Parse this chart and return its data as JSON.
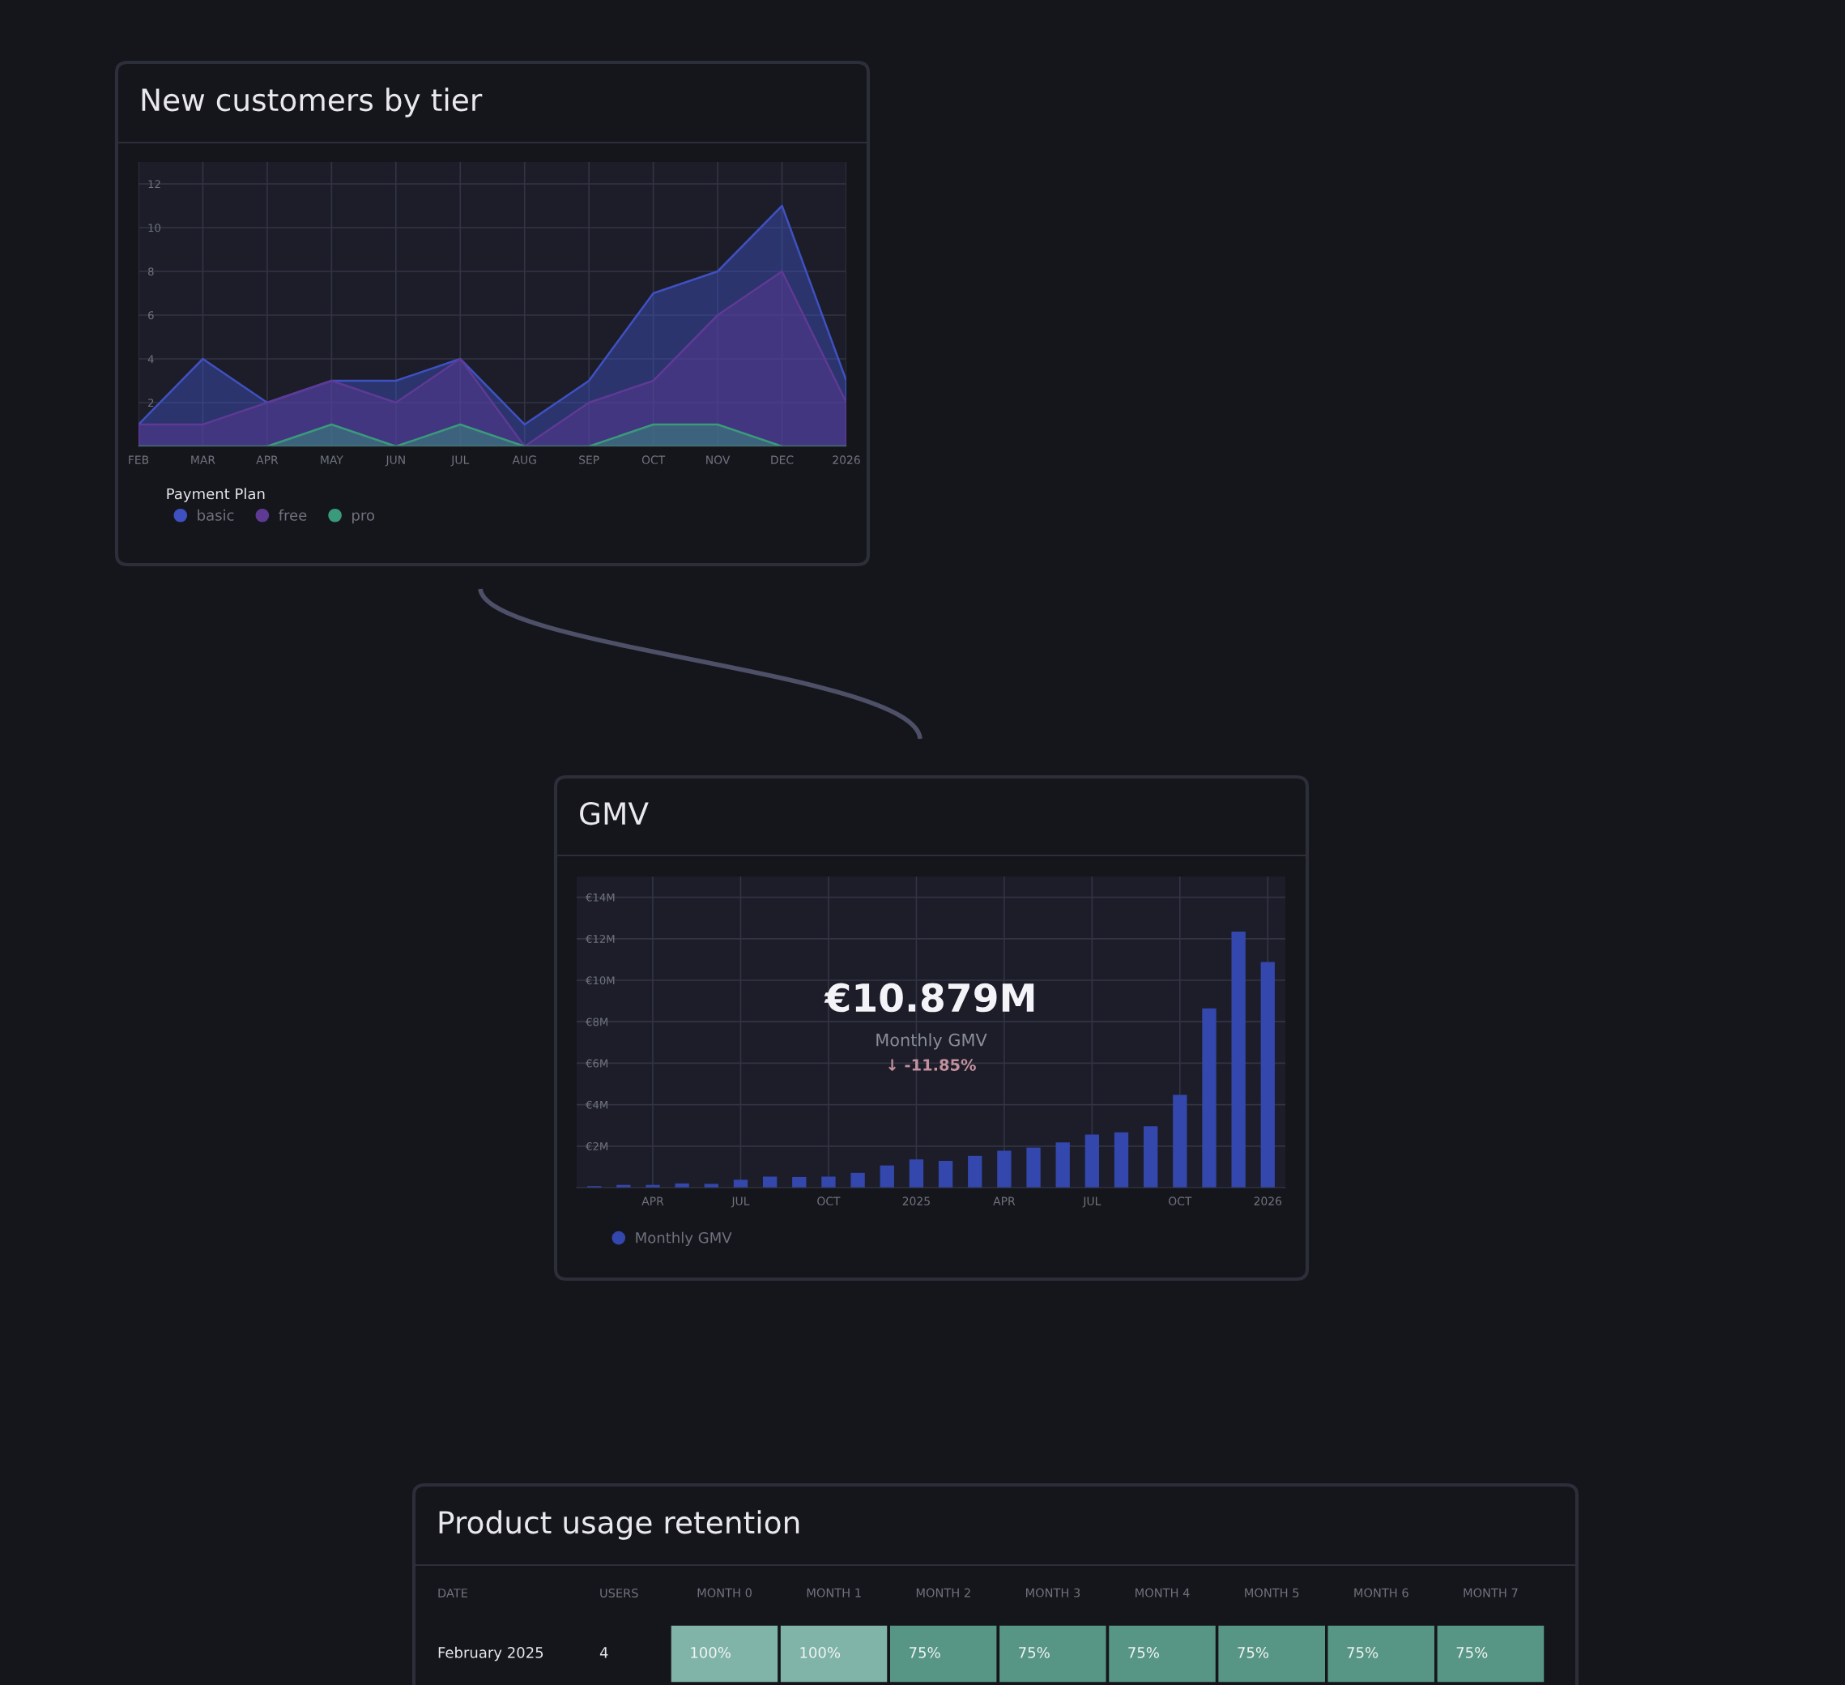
{
  "chart_data": [
    {
      "type": "area",
      "title": "New customers by tier",
      "legend_title": "Payment Plan",
      "legend": "bottom left",
      "grid": true,
      "categories": [
        "FEB",
        "MAR",
        "APR",
        "MAY",
        "JUN",
        "JUL",
        "AUG",
        "SEP",
        "OCT",
        "NOV",
        "DEC",
        "2026"
      ],
      "ylim": [
        0,
        13
      ],
      "yticks": [
        2,
        4,
        6,
        8,
        10,
        12
      ],
      "series": [
        {
          "name": "basic",
          "color": "#3f51c0",
          "values": [
            1,
            4,
            2,
            3,
            3,
            4,
            1,
            3,
            7,
            8,
            11,
            3
          ]
        },
        {
          "name": "free",
          "color": "#5e3a94",
          "values": [
            1,
            1,
            2,
            3,
            2,
            4,
            0,
            2,
            3,
            6,
            8,
            2
          ]
        },
        {
          "name": "pro",
          "color": "#3a9a7c",
          "values": [
            0,
            0,
            0,
            1,
            0,
            1,
            0,
            0,
            1,
            1,
            0,
            0
          ]
        }
      ]
    },
    {
      "type": "bar",
      "title": "GMV",
      "legend": "bottom left",
      "grid": true,
      "categories": [
        null,
        null,
        "APR",
        null,
        null,
        "JUL",
        null,
        null,
        "OCT",
        null,
        null,
        "2025",
        null,
        null,
        "APR",
        null,
        null,
        "JUL",
        null,
        null,
        "OCT",
        null,
        null,
        "2026"
      ],
      "ylim": [
        0,
        15
      ],
      "yticks": [
        {
          "value": 2,
          "label": "€2M"
        },
        {
          "value": 4,
          "label": "€4M"
        },
        {
          "value": 6,
          "label": "€6M"
        },
        {
          "value": 8,
          "label": "€8M"
        },
        {
          "value": 10,
          "label": "€10M"
        },
        {
          "value": 12,
          "label": "€12M"
        },
        {
          "value": 14,
          "label": "€14M"
        }
      ],
      "series": [
        {
          "name": "Monthly GMV",
          "color": "#3347ad",
          "values": [
            0.07,
            0.13,
            0.13,
            0.2,
            0.18,
            0.38,
            0.53,
            0.51,
            0.53,
            0.71,
            1.07,
            1.36,
            1.29,
            1.53,
            1.78,
            1.93,
            2.18,
            2.56,
            2.67,
            2.96,
            4.47,
            8.64,
            12.34,
            10.879
          ]
        }
      ],
      "annotations": [
        "€10.879M",
        "Monthly GMV",
        "↓ -11.85%"
      ]
    },
    {
      "type": "heatmap",
      "title": "Product usage retention",
      "ylabel": "DATE",
      "y2label": "USERS",
      "categories": [
        "MONTH 0",
        "MONTH 1",
        "MONTH 2",
        "MONTH 3",
        "MONTH 4",
        "MONTH 5",
        "MONTH 6",
        "MONTH 7"
      ],
      "y_categories": [
        "February 2025"
      ],
      "y2_categories": [
        "4"
      ],
      "cells": [
        [
          100,
          100,
          75,
          75,
          75,
          75,
          75,
          75
        ]
      ],
      "cell_labels": [
        [
          "100%",
          "100%",
          "75%",
          "75%",
          "75%",
          "75%",
          "75%",
          "75%"
        ]
      ]
    }
  ]
}
